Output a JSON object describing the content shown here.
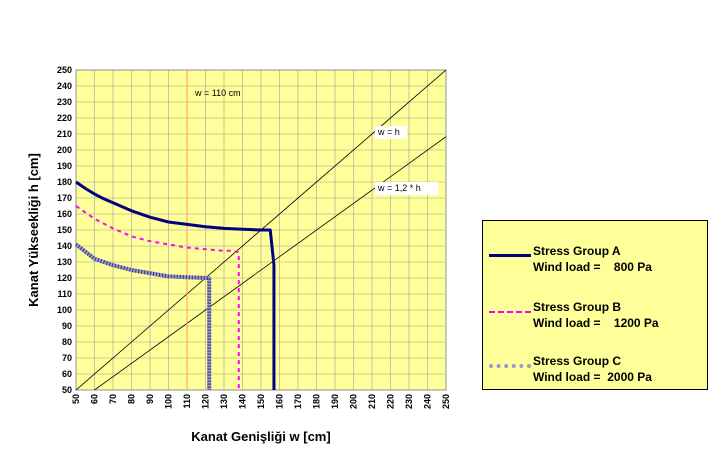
{
  "chart_data": {
    "type": "line",
    "title": "",
    "xlabel": "Kanat Genişliği   w  [cm]",
    "ylabel": "Kanat Yükseekliği   h  [cm]",
    "xlim": [
      50,
      250
    ],
    "ylim": [
      50,
      250
    ],
    "xticks": [
      50,
      60,
      70,
      80,
      90,
      100,
      110,
      120,
      130,
      140,
      150,
      160,
      170,
      180,
      190,
      200,
      210,
      220,
      230,
      240,
      250
    ],
    "yticks": [
      50,
      60,
      70,
      80,
      90,
      100,
      110,
      120,
      130,
      140,
      150,
      160,
      170,
      180,
      190,
      200,
      210,
      220,
      230,
      240,
      250
    ],
    "grid": true,
    "plot_background": "#ffff99",
    "legend_position": "right",
    "series": [
      {
        "name": "Stress Group A",
        "load_label": "Wind load =    800 Pa",
        "color": "#000080",
        "style": "solid-thick",
        "x": [
          50,
          55,
          60,
          65,
          70,
          75,
          80,
          90,
          100,
          110,
          120,
          130,
          140,
          150,
          155,
          157,
          157
        ],
        "y": [
          180,
          176,
          172.5,
          169.5,
          167,
          164.5,
          162,
          158,
          155,
          153.5,
          152,
          151,
          150.5,
          150,
          150,
          128,
          50
        ]
      },
      {
        "name": "Stress Group B",
        "load_label": "Wind load =    1200 Pa",
        "color": "#ff00ff",
        "style": "dashed",
        "x": [
          50,
          60,
          70,
          80,
          90,
          100,
          110,
          120,
          130,
          135,
          138,
          138
        ],
        "y": [
          165,
          157,
          151,
          146,
          143,
          141,
          139,
          138,
          137,
          137,
          136,
          50
        ]
      },
      {
        "name": "Stress Group C",
        "load_label": "Wind load =  2000 Pa",
        "color": "#9999cc",
        "style": "hatched",
        "x": [
          50,
          60,
          70,
          80,
          90,
          100,
          110,
          120,
          122,
          122
        ],
        "y": [
          141,
          132,
          128,
          125,
          123,
          121,
          120.5,
          120,
          120,
          50
        ]
      }
    ],
    "reference_lines": [
      {
        "label": "w = h",
        "x": [
          50,
          250
        ],
        "y": [
          50,
          250
        ]
      },
      {
        "label": "w = 1,2 * h",
        "x": [
          60,
          250
        ],
        "y": [
          50,
          208.3
        ]
      }
    ],
    "vertical_marker": {
      "label": "w = 110 cm",
      "x": 110,
      "color": "#ff9966"
    }
  }
}
